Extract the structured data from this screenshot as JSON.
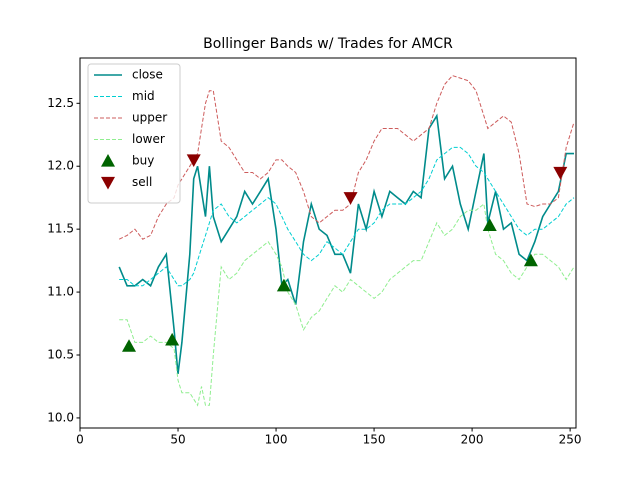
{
  "chart_data": {
    "type": "line",
    "title": "Bollinger Bands w/ Trades for AMCR",
    "x": [
      20,
      24,
      28,
      32,
      36,
      40,
      44,
      48,
      50,
      52,
      56,
      58,
      60,
      62,
      64,
      66,
      68,
      72,
      76,
      80,
      84,
      88,
      92,
      96,
      100,
      103,
      106,
      110,
      114,
      118,
      122,
      126,
      130,
      134,
      138,
      142,
      146,
      150,
      154,
      158,
      162,
      166,
      170,
      174,
      178,
      182,
      186,
      190,
      194,
      198,
      202,
      206,
      208,
      212,
      216,
      220,
      224,
      228,
      232,
      236,
      240,
      244,
      248,
      252
    ],
    "xlim": [
      0,
      253
    ],
    "ylim": [
      9.92,
      12.86
    ],
    "xticks": [
      0,
      50,
      100,
      150,
      200,
      250
    ],
    "yticks": [
      {
        "value": 10,
        "label": "10.0"
      },
      {
        "value": 10.5,
        "label": "10.5"
      },
      {
        "value": 11,
        "label": "11.0"
      },
      {
        "value": 11.5,
        "label": "11.5"
      },
      {
        "value": 12,
        "label": "12.0"
      },
      {
        "value": 12.5,
        "label": "12.5"
      }
    ],
    "legend": "upper left",
    "series": [
      {
        "name": "close",
        "color": "#008b8b",
        "style": "solid",
        "values": [
          11.2,
          11.05,
          11.05,
          11.1,
          11.05,
          11.2,
          11.3,
          10.7,
          10.35,
          10.6,
          11.3,
          11.9,
          12.0,
          11.8,
          11.6,
          12.0,
          11.6,
          11.4,
          11.5,
          11.6,
          11.8,
          11.7,
          11.8,
          11.9,
          11.5,
          11.05,
          11.1,
          10.9,
          11.4,
          11.7,
          11.5,
          11.45,
          11.3,
          11.3,
          11.15,
          11.7,
          11.5,
          11.8,
          11.6,
          11.8,
          11.75,
          11.7,
          11.8,
          11.75,
          12.3,
          12.4,
          11.9,
          12.0,
          11.7,
          11.5,
          11.8,
          12.1,
          11.55,
          11.8,
          11.5,
          11.55,
          11.3,
          11.25,
          11.4,
          11.6,
          11.7,
          11.8,
          12.1,
          12.1
        ]
      },
      {
        "name": "mid",
        "color": "#00ced1",
        "style": "dashed",
        "values": [
          11.1,
          11.1,
          11.05,
          11.05,
          11.1,
          11.15,
          11.2,
          11.1,
          11.05,
          11.05,
          11.1,
          11.15,
          11.25,
          11.35,
          11.45,
          11.55,
          11.65,
          11.7,
          11.6,
          11.55,
          11.6,
          11.65,
          11.7,
          11.75,
          11.7,
          11.6,
          11.5,
          11.4,
          11.3,
          11.25,
          11.3,
          11.4,
          11.35,
          11.3,
          11.4,
          11.5,
          11.5,
          11.55,
          11.65,
          11.7,
          11.7,
          11.7,
          11.75,
          11.8,
          11.9,
          12.05,
          12.1,
          12.15,
          12.15,
          12.1,
          12.0,
          11.95,
          11.9,
          11.8,
          11.7,
          11.6,
          11.5,
          11.45,
          11.5,
          11.5,
          11.55,
          11.6,
          11.7,
          11.75
        ]
      },
      {
        "name": "upper",
        "color": "#cd5c5c",
        "style": "dashed",
        "values": [
          11.42,
          11.45,
          11.5,
          11.42,
          11.45,
          11.6,
          11.7,
          11.75,
          11.85,
          11.9,
          12.0,
          12.05,
          12.1,
          12.3,
          12.5,
          12.6,
          12.6,
          12.2,
          12.15,
          12.05,
          11.95,
          11.95,
          11.9,
          11.95,
          12.05,
          12.05,
          12.0,
          11.95,
          11.8,
          11.6,
          11.55,
          11.6,
          11.65,
          11.65,
          11.7,
          11.95,
          12.05,
          12.2,
          12.3,
          12.3,
          12.3,
          12.25,
          12.2,
          12.25,
          12.3,
          12.5,
          12.65,
          12.72,
          12.7,
          12.68,
          12.6,
          12.4,
          12.3,
          12.35,
          12.4,
          12.35,
          12.1,
          11.7,
          11.68,
          11.7,
          11.7,
          11.75,
          12.15,
          12.35
        ]
      },
      {
        "name": "lower",
        "color": "#90ee90",
        "style": "dashed",
        "values": [
          10.78,
          10.78,
          10.6,
          10.6,
          10.65,
          10.6,
          10.6,
          10.55,
          10.3,
          10.2,
          10.2,
          10.15,
          10.1,
          10.25,
          10.1,
          10.1,
          10.5,
          11.2,
          11.1,
          11.15,
          11.25,
          11.3,
          11.35,
          11.4,
          11.3,
          11.2,
          11.0,
          10.9,
          10.7,
          10.8,
          10.85,
          10.95,
          11.05,
          11.0,
          11.1,
          11.05,
          11.0,
          10.95,
          11.0,
          11.1,
          11.15,
          11.2,
          11.25,
          11.25,
          11.4,
          11.55,
          11.45,
          11.5,
          11.6,
          11.65,
          11.65,
          11.7,
          11.5,
          11.3,
          11.25,
          11.15,
          11.1,
          11.2,
          11.3,
          11.3,
          11.25,
          11.2,
          11.1,
          11.2
        ]
      },
      {
        "name": "buy",
        "color": "#006400",
        "marker": "up",
        "x": [
          25,
          47,
          104,
          209,
          230
        ],
        "values": [
          10.57,
          10.62,
          11.05,
          11.53,
          11.25
        ]
      },
      {
        "name": "sell",
        "color": "#8b0000",
        "marker": "down",
        "x": [
          58,
          138,
          245
        ],
        "values": [
          12.05,
          11.75,
          11.95
        ]
      }
    ]
  }
}
